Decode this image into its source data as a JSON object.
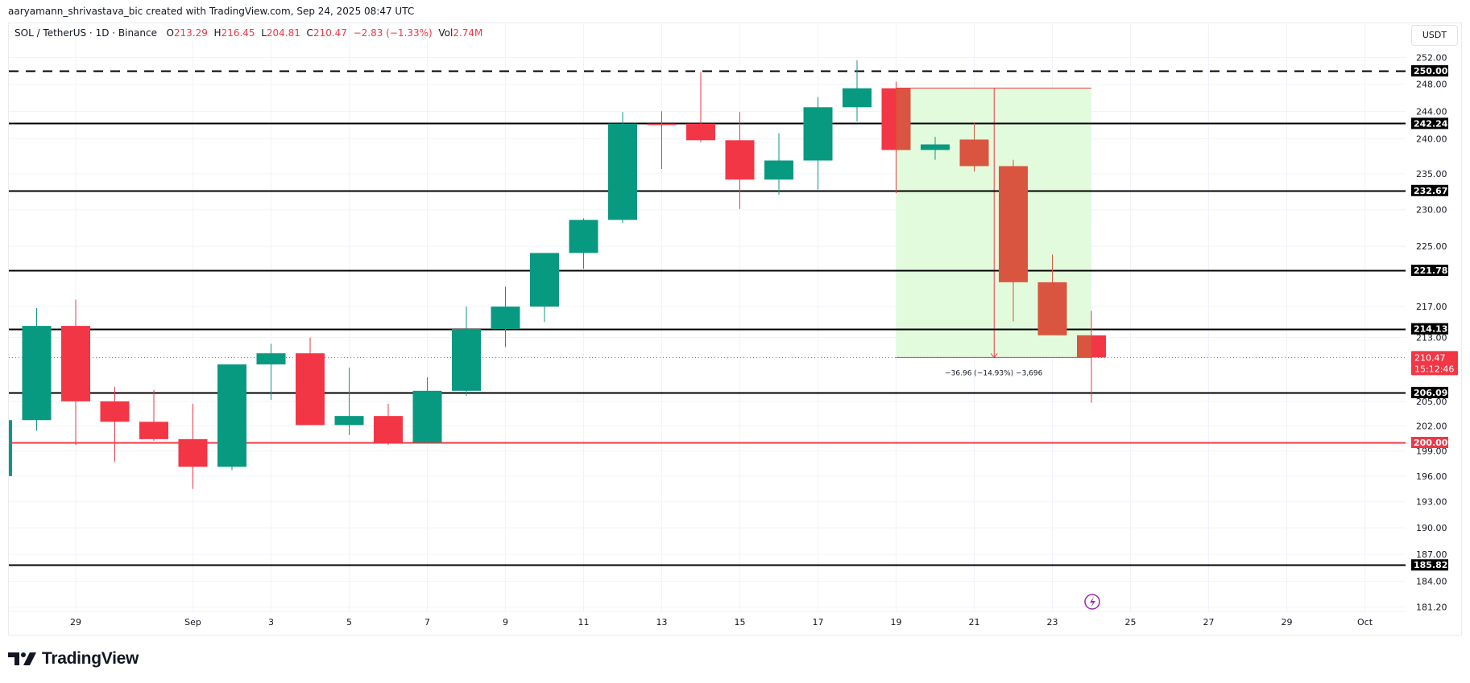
{
  "header": {
    "credit": "aaryamann_shrivastava_bic created with TradingView.com, Sep 24, 2025 08:47 UTC"
  },
  "legend": {
    "symbol": "SOL / TetherUS · 1D · Binance",
    "o_label": "O",
    "o_value": "213.29",
    "h_label": "H",
    "h_value": "216.45",
    "l_label": "L",
    "l_value": "204.81",
    "c_label": "C",
    "c_value": "210.47",
    "change": "−2.83 (−1.33%)",
    "vol_label": "Vol",
    "vol_value": "2.74M"
  },
  "price_axis": {
    "currency_button": "USDT",
    "ticks": [
      "252.00",
      "248.00",
      "244.00",
      "240.00",
      "235.00",
      "230.00",
      "225.00",
      "217.00",
      "213.00",
      "205.00",
      "202.00",
      "199.00",
      "196.00",
      "193.00",
      "190.00",
      "187.00",
      "184.00",
      "181.20"
    ],
    "current_price": "210.47",
    "countdown": "15:12:46"
  },
  "time_axis": {
    "labels": [
      "29",
      "Sep",
      "3",
      "5",
      "7",
      "9",
      "11",
      "13",
      "15",
      "17",
      "19",
      "21",
      "23",
      "25",
      "27",
      "29",
      "Oct"
    ]
  },
  "measurement": {
    "label": "−36.96 (−14.93%) −3,696"
  },
  "branding": {
    "logo_text": "TradingView"
  },
  "colors": {
    "up": "#089981",
    "down": "#f23645",
    "down_in_box": "#d9553f",
    "measure_fill": "#e3fbdd",
    "level_line": "#000000",
    "level_red": "#f23645",
    "alert_icon": "#9c27b0"
  },
  "chart_data": {
    "type": "candlestick",
    "title": "SOL / TetherUS · 1D · Binance",
    "xlabel": "",
    "ylabel": "USDT",
    "scale": "log",
    "ylim": [
      180.5,
      254
    ],
    "grid": true,
    "categories": [
      "Aug 27",
      "Aug 28",
      "Aug 29",
      "Aug 30",
      "Aug 31",
      "Sep 1",
      "Sep 2",
      "Sep 3",
      "Sep 4",
      "Sep 5",
      "Sep 6",
      "Sep 7",
      "Sep 8",
      "Sep 9",
      "Sep 10",
      "Sep 11",
      "Sep 12",
      "Sep 13",
      "Sep 14",
      "Sep 15",
      "Sep 16",
      "Sep 17",
      "Sep 18",
      "Sep 19",
      "Sep 20",
      "Sep 21",
      "Sep 22",
      "Sep 23",
      "Sep 24"
    ],
    "series": [
      {
        "name": "open",
        "values": [
          196.0,
          202.7,
          214.5,
          205.0,
          202.5,
          200.4,
          197.1,
          209.6,
          211.0,
          202.1,
          203.2,
          200.0,
          206.3,
          214.1,
          217.0,
          224.1,
          228.6,
          242.2,
          242.2,
          239.8,
          234.2,
          236.9,
          244.6,
          247.4,
          238.4,
          239.9,
          236.1,
          220.2,
          213.29
        ]
      },
      {
        "name": "high",
        "values": [
          203.0,
          216.8,
          217.9,
          206.8,
          206.4,
          204.7,
          209.6,
          212.2,
          213.0,
          209.2,
          204.7,
          208.0,
          217.0,
          219.6,
          221.2,
          228.8,
          243.9,
          244.0,
          249.8,
          243.9,
          240.8,
          246.1,
          251.6,
          248.4,
          240.3,
          242.4,
          237.0,
          223.9,
          216.45
        ]
      },
      {
        "name": "low",
        "values": [
          195.0,
          201.4,
          199.7,
          197.7,
          200.2,
          194.5,
          196.7,
          205.2,
          202.1,
          200.9,
          199.7,
          200.0,
          205.7,
          211.8,
          215.0,
          222.0,
          228.2,
          235.7,
          239.5,
          230.1,
          232.1,
          232.8,
          242.5,
          232.3,
          237.0,
          235.3,
          215.1,
          213.3,
          204.81
        ]
      },
      {
        "name": "close",
        "values": [
          202.7,
          214.5,
          205.0,
          202.5,
          200.4,
          197.1,
          209.6,
          211.0,
          202.1,
          203.2,
          200.0,
          206.3,
          214.1,
          217.0,
          224.1,
          228.6,
          242.2,
          242.0,
          239.8,
          234.2,
          236.9,
          244.6,
          247.4,
          238.4,
          239.2,
          236.1,
          220.2,
          213.3,
          210.47
        ]
      }
    ],
    "horizontal_levels": [
      {
        "price": 250.0,
        "style": "dashed",
        "color": "#000000"
      },
      {
        "price": 242.24,
        "style": "solid",
        "color": "#000000"
      },
      {
        "price": 232.67,
        "style": "solid",
        "color": "#000000"
      },
      {
        "price": 221.78,
        "style": "solid",
        "color": "#000000"
      },
      {
        "price": 214.13,
        "style": "solid",
        "color": "#000000"
      },
      {
        "price": 206.09,
        "style": "solid",
        "color": "#000000"
      },
      {
        "price": 200.0,
        "style": "solid",
        "color": "#f23645"
      },
      {
        "price": 185.82,
        "style": "solid",
        "color": "#000000"
      }
    ],
    "annotations": [
      {
        "type": "price_range",
        "from_date": "Sep 19",
        "to_date": "Sep 24",
        "from_price": 247.43,
        "to_price": 210.47,
        "label": "−36.96 (−14.93%) −3,696"
      }
    ],
    "current_price": 210.47
  }
}
